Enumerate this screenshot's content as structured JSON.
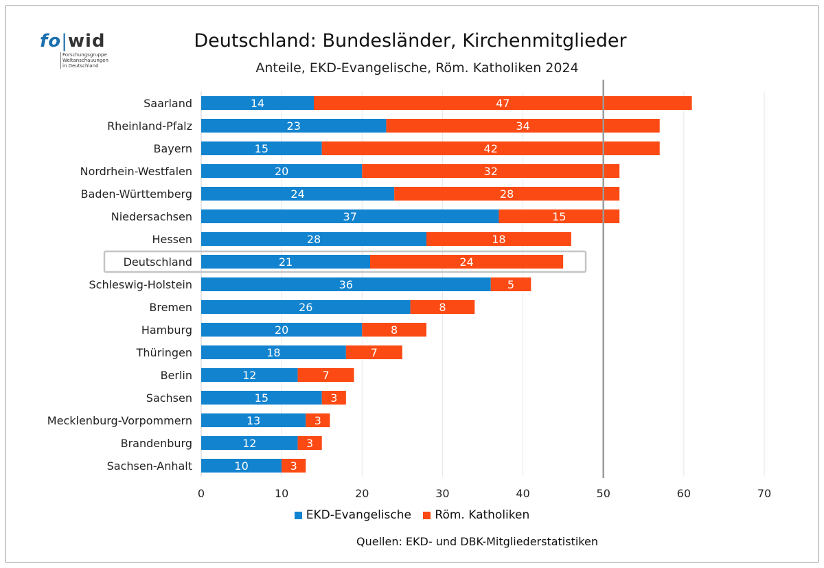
{
  "logo": {
    "prefix": "fo",
    "separator": "|",
    "suffix": "wid",
    "subtitle": "Forschungsgruppe\nWeltanschauungen\nin Deutschland"
  },
  "title": "Deutschland: Bundesländer, Kirchenmitglieder",
  "subtitle": "Anteile, EKD-Evangelische, Röm. Katholiken 2024",
  "source": "Quellen: EKD- und DBK-Mitgliederstatistiken",
  "colors": {
    "ekd": "#1283cf",
    "rk": "#fb4a13",
    "grid": "#e6e6e6",
    "reference_line": "#9a9a9a",
    "highlight_box": "#c4c4c4"
  },
  "chart_data": {
    "type": "bar",
    "orientation": "horizontal",
    "stacked": true,
    "categories": [
      "Saarland",
      "Rheinland-Pfalz",
      "Bayern",
      "Nordrhein-Westfalen",
      "Baden-Württemberg",
      "Niedersachsen",
      "Hessen",
      "Deutschland",
      "Schleswig-Holstein",
      "Bremen",
      "Hamburg",
      "Thüringen",
      "Berlin",
      "Sachsen",
      "Mecklenburg-Vorpommern",
      "Brandenburg",
      "Sachsen-Anhalt"
    ],
    "series": [
      {
        "name": "EKD-Evangelische",
        "values": [
          14,
          23,
          15,
          20,
          24,
          37,
          28,
          21,
          36,
          26,
          20,
          18,
          12,
          15,
          13,
          12,
          10
        ]
      },
      {
        "name": "Röm. Katholiken",
        "values": [
          47,
          34,
          42,
          32,
          28,
          15,
          18,
          24,
          5,
          8,
          8,
          7,
          7,
          3,
          3,
          3,
          3
        ]
      }
    ],
    "xlim": [
      0,
      70
    ],
    "xticks": [
      0,
      10,
      20,
      30,
      40,
      50,
      60,
      70
    ],
    "reference_line": 50,
    "highlighted_category": "Deutschland",
    "grid": true,
    "legend_position": "bottom"
  }
}
